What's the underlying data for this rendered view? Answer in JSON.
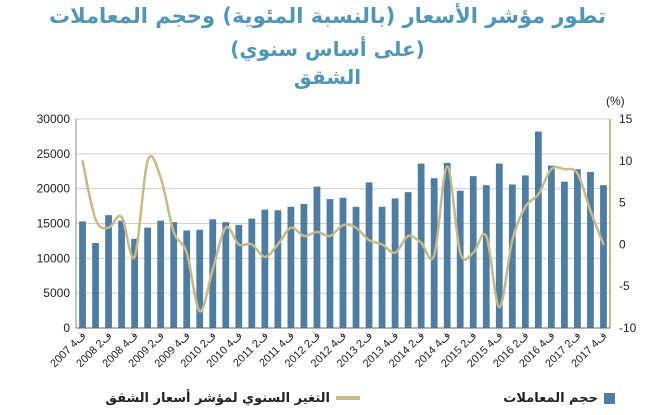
{
  "titles": {
    "line1": "تطور مؤشر الأسعار (بالنسبة المئوية) وحجم المعاملات",
    "line2": "(على أساس سنوي)",
    "line3": "الشقق"
  },
  "colors": {
    "bars": "#4d7da3",
    "line": "#c9b987",
    "title": "#4f97b8",
    "grid": "#cfcfcf"
  },
  "chart_data": {
    "type": "bar+line",
    "categories": [
      "ف4 2007",
      "ف1 2008",
      "ف2 2008",
      "ف3 2008",
      "ف4 2008",
      "ف1 2009",
      "ف2 2009",
      "ف3 2009",
      "ف4 2009",
      "ف1 2010",
      "ف2 2010",
      "ف3 2010",
      "ف4 2010",
      "ف1 2011",
      "ف2 2011",
      "ف3 2011",
      "ف4 2011",
      "ف1 2012",
      "ف2 2012",
      "ف3 2012",
      "ف4 2012",
      "ف1 2013",
      "ف2 2013",
      "ف3 2013",
      "ف4 2013",
      "ف1 2014",
      "ف2 2014",
      "ف3 2014",
      "ف4 2014",
      "ف1 2015",
      "ف2 2015",
      "ف3 2015",
      "ف4 2015",
      "ف1 2016",
      "ف2 2016",
      "ف3 2016",
      "ف4 2016",
      "ف1 2017",
      "ف2 2017",
      "ف3 2017",
      "ف4 2017"
    ],
    "x_tick_labels": [
      "ف4 2007",
      "ف2 2008",
      "ف4 2008",
      "ف2 2009",
      "ف4 2009",
      "ف2 2010",
      "ف4 2010",
      "ف2 2011",
      "ف4 2011",
      "ف2 2012",
      "ف4 2012",
      "ف2 2013",
      "ف4 2013",
      "ف2 2014",
      "ف4 2014",
      "ف2 2015",
      "ف4 2015",
      "ف2 2016",
      "ف4 2016",
      "ف2 2017",
      "ف4 2017"
    ],
    "series": [
      {
        "name": "حجم المعاملات",
        "type": "bar",
        "axis": "left",
        "values": [
          15300,
          12200,
          16200,
          15400,
          12800,
          14400,
          15400,
          15200,
          14000,
          14100,
          15600,
          15200,
          14800,
          15700,
          17000,
          16900,
          17400,
          17800,
          20300,
          18500,
          18700,
          17400,
          20900,
          17400,
          18600,
          19500,
          23600,
          21500,
          23700,
          19700,
          21800,
          20500,
          23600,
          20600,
          21900,
          28200,
          23300,
          21000,
          22800,
          22400,
          20500
        ]
      },
      {
        "name": "التغير السنوي لمؤشر أسعار الشقق",
        "type": "line",
        "axis": "right",
        "values": [
          10,
          3,
          2,
          3.3,
          -1.5,
          10,
          8,
          1.5,
          -1,
          -8,
          -3,
          2,
          0,
          0,
          -1.5,
          0,
          2,
          1,
          1.5,
          1,
          2.3,
          2,
          0.5,
          0,
          -1,
          1,
          0.2,
          -1.3,
          9.3,
          -1,
          -1,
          1,
          -7.5,
          0.5,
          4.5,
          6,
          9,
          9,
          8.5,
          4,
          0
        ]
      }
    ],
    "y_left": {
      "min": 0,
      "max": 30000,
      "ticks": [
        0,
        5000,
        10000,
        15000,
        20000,
        25000,
        30000
      ]
    },
    "y_right": {
      "min": -10,
      "max": 15,
      "ticks": [
        -10,
        -5,
        0,
        5,
        10,
        15
      ],
      "unit_label": "(%)"
    },
    "legend": {
      "position": "bottom"
    }
  }
}
